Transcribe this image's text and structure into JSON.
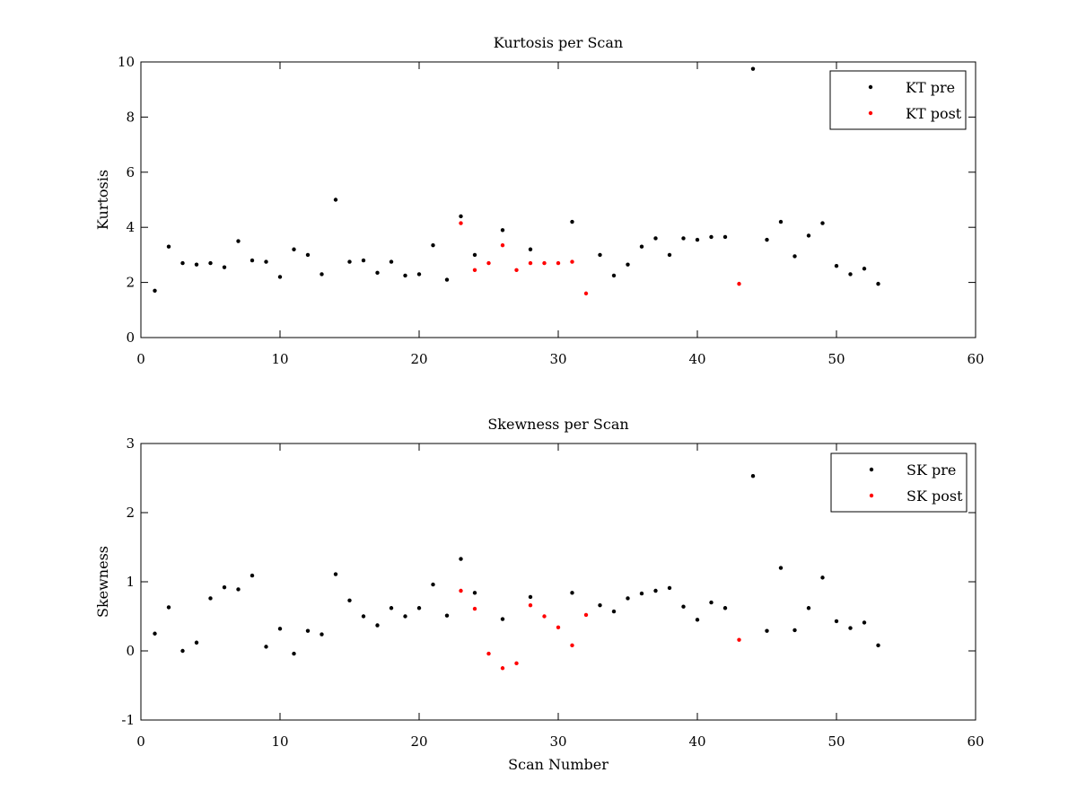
{
  "chart_data": [
    {
      "type": "scatter",
      "title": "Kurtosis per Scan",
      "xlabel": "",
      "ylabel": "Kurtosis",
      "xlim": [
        0,
        60
      ],
      "ylim": [
        0,
        10
      ],
      "xticks": [
        0,
        10,
        20,
        30,
        40,
        50,
        60
      ],
      "yticks": [
        0,
        2,
        4,
        6,
        8,
        10
      ],
      "grid": false,
      "legend_position": "top-right",
      "series": [
        {
          "name": "KT pre",
          "color": "#000000",
          "x": [
            1,
            2,
            3,
            4,
            5,
            6,
            7,
            8,
            9,
            10,
            11,
            12,
            13,
            14,
            15,
            16,
            17,
            18,
            19,
            20,
            21,
            22,
            23,
            24,
            26,
            28,
            31,
            33,
            34,
            35,
            36,
            37,
            38,
            39,
            40,
            41,
            42,
            44,
            45,
            46,
            47,
            48,
            49,
            50,
            51,
            52,
            53
          ],
          "y": [
            1.7,
            3.3,
            2.7,
            2.65,
            2.7,
            2.55,
            3.5,
            2.8,
            2.75,
            2.2,
            3.2,
            3.0,
            2.3,
            5.0,
            2.75,
            2.8,
            2.35,
            2.75,
            2.25,
            2.3,
            3.35,
            2.1,
            4.4,
            3.0,
            3.9,
            3.2,
            4.2,
            3.0,
            2.25,
            2.65,
            3.3,
            3.6,
            3.0,
            3.6,
            3.55,
            3.65,
            3.65,
            9.75,
            3.55,
            4.2,
            2.95,
            3.7,
            4.15,
            2.6,
            2.3,
            2.5,
            1.95
          ]
        },
        {
          "name": "KT post",
          "color": "#ff0000",
          "x": [
            23,
            24,
            25,
            26,
            27,
            28,
            29,
            30,
            31,
            32,
            43
          ],
          "y": [
            4.15,
            2.45,
            2.7,
            3.35,
            2.45,
            2.7,
            2.7,
            2.7,
            2.75,
            1.6,
            1.95
          ]
        }
      ]
    },
    {
      "type": "scatter",
      "title": "Skewness per Scan",
      "xlabel": "Scan Number",
      "ylabel": "Skewness",
      "xlim": [
        0,
        60
      ],
      "ylim": [
        -1,
        3
      ],
      "xticks": [
        0,
        10,
        20,
        30,
        40,
        50,
        60
      ],
      "yticks": [
        -1,
        0,
        1,
        2,
        3
      ],
      "grid": false,
      "legend_position": "top-right",
      "series": [
        {
          "name": "SK pre",
          "color": "#000000",
          "x": [
            1,
            2,
            3,
            4,
            5,
            6,
            7,
            8,
            9,
            10,
            11,
            12,
            13,
            14,
            15,
            16,
            17,
            18,
            19,
            20,
            21,
            22,
            23,
            24,
            26,
            28,
            31,
            33,
            34,
            35,
            36,
            37,
            38,
            39,
            40,
            41,
            42,
            44,
            45,
            46,
            47,
            48,
            49,
            50,
            51,
            52,
            53
          ],
          "y": [
            0.25,
            0.63,
            0.0,
            0.12,
            0.76,
            0.92,
            0.89,
            1.09,
            0.06,
            0.32,
            -0.04,
            0.29,
            0.24,
            1.11,
            0.73,
            0.5,
            0.37,
            0.62,
            0.5,
            0.62,
            0.96,
            0.51,
            1.33,
            0.84,
            0.46,
            0.78,
            0.84,
            0.66,
            0.57,
            0.76,
            0.83,
            0.87,
            0.91,
            0.64,
            0.45,
            0.7,
            0.62,
            2.53,
            0.29,
            1.2,
            0.3,
            0.62,
            1.06,
            0.43,
            0.33,
            0.41,
            0.08
          ]
        },
        {
          "name": "SK post",
          "color": "#ff0000",
          "x": [
            23,
            24,
            25,
            26,
            27,
            28,
            29,
            30,
            31,
            32,
            43
          ],
          "y": [
            0.87,
            0.61,
            -0.04,
            -0.25,
            -0.18,
            0.66,
            0.5,
            0.34,
            0.08,
            0.52,
            0.16
          ]
        }
      ]
    }
  ]
}
